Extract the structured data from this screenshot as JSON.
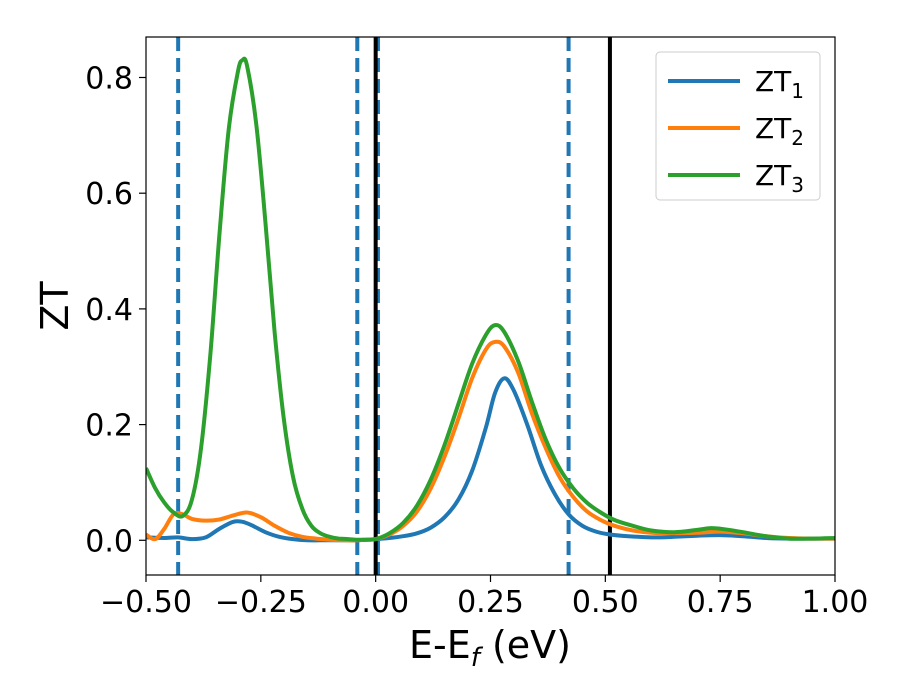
{
  "chart_data": {
    "type": "line",
    "xlabel": {
      "main": "E-E",
      "sub": "f",
      "unit": " (eV)"
    },
    "ylabel": "ZT",
    "xlim": [
      -0.5,
      1.0
    ],
    "ylim": [
      -0.06,
      0.87
    ],
    "grid": false,
    "legend_placement": "top-right",
    "x_ticks": [
      {
        "value": -0.5,
        "label": "−0.50"
      },
      {
        "value": -0.25,
        "label": "−0.25"
      },
      {
        "value": 0.0,
        "label": "0.00"
      },
      {
        "value": 0.25,
        "label": "0.25"
      },
      {
        "value": 0.5,
        "label": "0.50"
      },
      {
        "value": 0.75,
        "label": "0.75"
      },
      {
        "value": 1.0,
        "label": "1.00"
      }
    ],
    "y_ticks": [
      {
        "value": 0.0,
        "label": "0.0"
      },
      {
        "value": 0.2,
        "label": "0.2"
      },
      {
        "value": 0.4,
        "label": "0.4"
      },
      {
        "value": 0.6,
        "label": "0.6"
      },
      {
        "value": 0.8,
        "label": "0.8"
      }
    ],
    "vlines_dashed": [
      -0.43,
      -0.04,
      0.005,
      0.42
    ],
    "vlines_solid": [
      0.0,
      0.51
    ],
    "series": [
      {
        "name": "ZT",
        "sub": "1",
        "color": "#1f77b4",
        "x": [
          -0.5,
          -0.46,
          -0.43,
          -0.4,
          -0.37,
          -0.34,
          -0.31,
          -0.29,
          -0.27,
          -0.24,
          -0.21,
          -0.18,
          -0.15,
          -0.12,
          -0.09,
          -0.06,
          -0.04,
          -0.02,
          0.0,
          0.03,
          0.06,
          0.09,
          0.12,
          0.15,
          0.18,
          0.21,
          0.24,
          0.26,
          0.28,
          0.3,
          0.33,
          0.36,
          0.39,
          0.42,
          0.45,
          0.48,
          0.51,
          0.55,
          0.6,
          0.65,
          0.7,
          0.75,
          0.8,
          0.85,
          0.9,
          0.95,
          1.0
        ],
        "y": [
          0.005,
          0.004,
          0.005,
          0.002,
          0.005,
          0.02,
          0.032,
          0.032,
          0.026,
          0.014,
          0.006,
          0.002,
          0.0,
          0.0,
          0.0,
          0.0,
          0.0,
          0.001,
          0.002,
          0.004,
          0.007,
          0.012,
          0.022,
          0.04,
          0.07,
          0.12,
          0.195,
          0.255,
          0.28,
          0.26,
          0.2,
          0.13,
          0.08,
          0.045,
          0.025,
          0.015,
          0.01,
          0.007,
          0.005,
          0.006,
          0.008,
          0.009,
          0.007,
          0.004,
          0.003,
          0.003,
          0.003
        ]
      },
      {
        "name": "ZT",
        "sub": "2",
        "color": "#ff7f0e",
        "x": [
          -0.5,
          -0.48,
          -0.46,
          -0.44,
          -0.42,
          -0.4,
          -0.37,
          -0.34,
          -0.31,
          -0.28,
          -0.25,
          -0.22,
          -0.19,
          -0.16,
          -0.13,
          -0.1,
          -0.07,
          -0.04,
          -0.02,
          0.0,
          0.03,
          0.06,
          0.09,
          0.12,
          0.15,
          0.18,
          0.21,
          0.24,
          0.26,
          0.28,
          0.31,
          0.34,
          0.37,
          0.4,
          0.43,
          0.46,
          0.49,
          0.52,
          0.56,
          0.6,
          0.65,
          0.7,
          0.75,
          0.8,
          0.85,
          0.9,
          0.95,
          1.0
        ],
        "y": [
          0.01,
          0.002,
          0.02,
          0.045,
          0.045,
          0.037,
          0.034,
          0.036,
          0.043,
          0.048,
          0.04,
          0.025,
          0.013,
          0.006,
          0.003,
          0.001,
          0.0,
          0.0,
          0.001,
          0.002,
          0.01,
          0.025,
          0.05,
          0.09,
          0.145,
          0.21,
          0.28,
          0.33,
          0.343,
          0.335,
          0.29,
          0.22,
          0.16,
          0.11,
          0.075,
          0.05,
          0.035,
          0.025,
          0.017,
          0.013,
          0.012,
          0.013,
          0.015,
          0.012,
          0.007,
          0.004,
          0.003,
          0.003
        ]
      },
      {
        "name": "ZT",
        "sub": "3",
        "color": "#2ca02c",
        "x": [
          -0.5,
          -0.48,
          -0.46,
          -0.44,
          -0.42,
          -0.4,
          -0.38,
          -0.36,
          -0.34,
          -0.32,
          -0.3,
          -0.29,
          -0.28,
          -0.26,
          -0.24,
          -0.22,
          -0.2,
          -0.18,
          -0.16,
          -0.14,
          -0.12,
          -0.1,
          -0.08,
          -0.06,
          -0.04,
          -0.02,
          0.0,
          0.03,
          0.06,
          0.09,
          0.12,
          0.15,
          0.18,
          0.21,
          0.24,
          0.26,
          0.28,
          0.31,
          0.34,
          0.37,
          0.4,
          0.43,
          0.46,
          0.49,
          0.52,
          0.56,
          0.6,
          0.65,
          0.7,
          0.73,
          0.76,
          0.8,
          0.85,
          0.9,
          0.95,
          1.0
        ],
        "y": [
          0.125,
          0.09,
          0.065,
          0.048,
          0.042,
          0.07,
          0.16,
          0.32,
          0.53,
          0.71,
          0.81,
          0.83,
          0.82,
          0.72,
          0.55,
          0.36,
          0.21,
          0.11,
          0.055,
          0.025,
          0.012,
          0.006,
          0.003,
          0.002,
          0.001,
          0.001,
          0.002,
          0.012,
          0.03,
          0.06,
          0.105,
          0.165,
          0.235,
          0.305,
          0.355,
          0.372,
          0.36,
          0.31,
          0.24,
          0.175,
          0.125,
          0.09,
          0.065,
          0.048,
          0.035,
          0.025,
          0.017,
          0.014,
          0.018,
          0.021,
          0.019,
          0.014,
          0.007,
          0.003,
          0.003,
          0.004
        ]
      }
    ]
  }
}
